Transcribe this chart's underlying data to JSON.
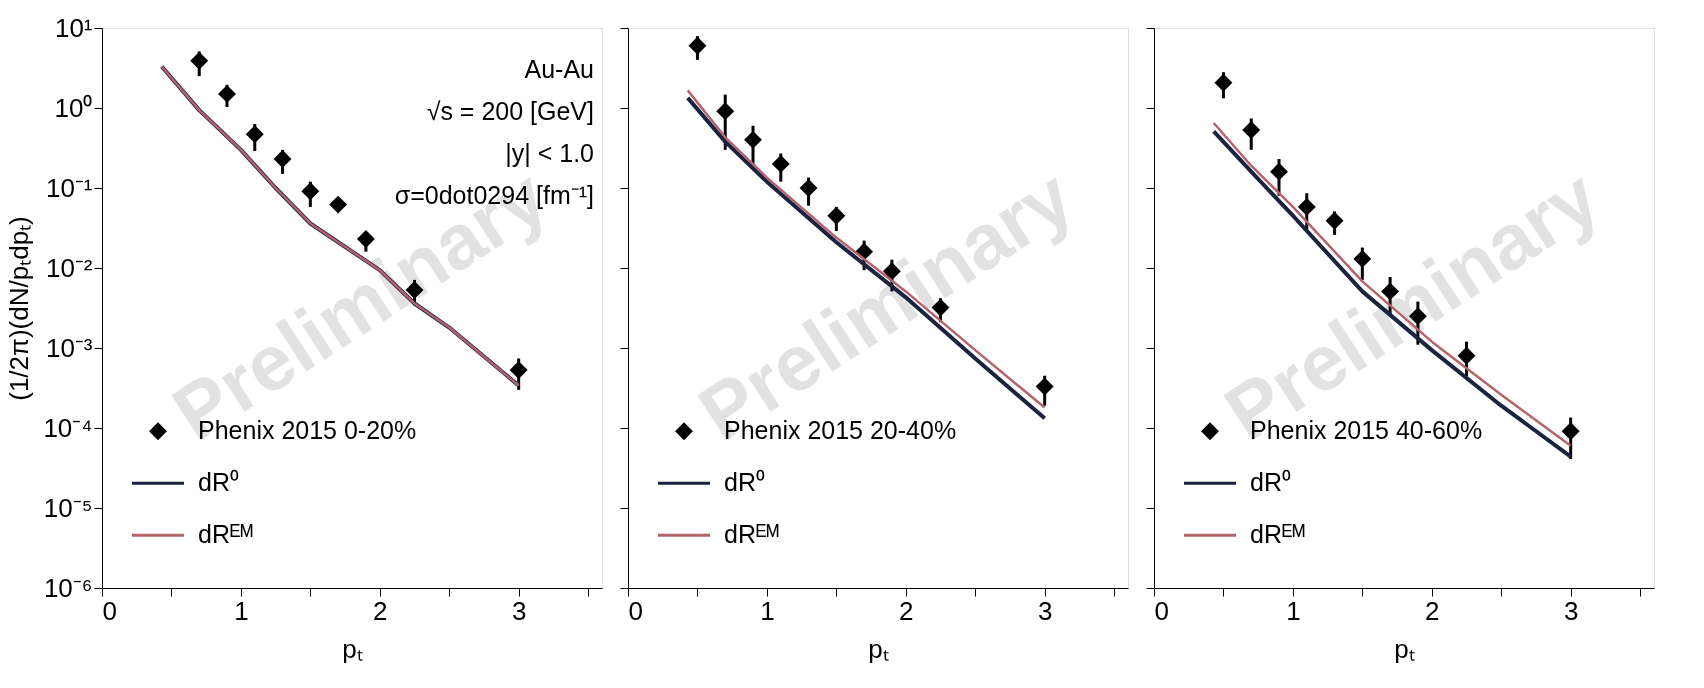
{
  "chart_data": [
    {
      "type": "scatter",
      "ylabel": "(1/2π)(dN/pₜdpₜ)",
      "xlabel": "pₜ",
      "xlim": [
        0,
        3.6
      ],
      "xticks": [
        0,
        {
          "value": 0.5,
          "label": null
        },
        1,
        {
          "value": 1.5,
          "label": null
        },
        2,
        {
          "value": 2.5,
          "label": null
        },
        3,
        {
          "value": 3.5,
          "label": null
        }
      ],
      "ylim": [
        1e-06,
        10
      ],
      "yticks": [
        {
          "value": 10,
          "label": "10¹"
        },
        {
          "value": 1,
          "label": "10⁰"
        },
        {
          "value": 0.1,
          "label": "10⁻¹"
        },
        {
          "value": 0.01,
          "label": "10⁻²"
        },
        {
          "value": 0.001,
          "label": "10⁻³"
        },
        {
          "value": 0.0001,
          "label": "10⁻⁴"
        },
        {
          "value": 1e-05,
          "label": "10⁻⁵"
        },
        {
          "value": 1e-06,
          "label": "10⁻⁶"
        }
      ],
      "log": "y",
      "legend": "bottom left",
      "annotations": [
        "Au-Au",
        "√s = 200 [GeV]",
        "|y| < 1.0",
        "σ=0dot0294 [fm⁻¹]",
        "Preliminary"
      ],
      "series": [
        {
          "name": "Phenix 2015 0-20%",
          "marker": "diamond",
          "color": "#000000",
          "x": [
            0.7,
            0.9,
            1.1,
            1.3,
            1.5,
            1.7,
            1.9,
            2.25,
            3.0
          ],
          "values": [
            3.9,
            1.5,
            0.47,
            0.23,
            0.091,
            0.062,
            0.023,
            0.0053,
            0.00053
          ],
          "errors": [
            [
              2.5,
              5.1
            ],
            [
              1.03,
              1.95
            ],
            [
              0.29,
              0.63
            ],
            [
              0.15,
              0.3
            ],
            [
              0.058,
              0.12
            ],
            null,
            [
              0.016,
              0.028
            ],
            [
              0.0034,
              0.0071
            ],
            [
              0.0003,
              0.00074
            ]
          ]
        },
        {
          "name": "dR⁰",
          "type": "line",
          "color": "#1a2340",
          "x": [
            0.43,
            0.7,
            1.0,
            1.25,
            1.5,
            2.0,
            2.25,
            2.5,
            3.0
          ],
          "values": [
            3.3,
            0.94,
            0.3,
            0.1,
            0.036,
            0.0094,
            0.0036,
            0.0018,
            0.00034
          ]
        },
        {
          "name": "dRᴱᴹ",
          "type": "line",
          "color": "#b5636b",
          "x": [
            0.43,
            0.7,
            1.0,
            1.25,
            1.5,
            2.0,
            2.25,
            2.5,
            3.0
          ],
          "values": [
            3.3,
            0.94,
            0.3,
            0.1,
            0.036,
            0.0094,
            0.0036,
            0.0018,
            0.00034
          ]
        }
      ]
    },
    {
      "type": "scatter",
      "xlabel": "pₜ",
      "xlim": [
        0,
        3.6
      ],
      "xticks": [
        0,
        {
          "value": 0.5,
          "label": null
        },
        1,
        {
          "value": 1.5,
          "label": null
        },
        2,
        {
          "value": 2.5,
          "label": null
        },
        3,
        {
          "value": 3.5,
          "label": null
        }
      ],
      "ylim": [
        1e-06,
        10
      ],
      "yticks": [
        {
          "value": 10,
          "label": null
        },
        {
          "value": 1,
          "label": null
        },
        {
          "value": 0.1,
          "label": null
        },
        {
          "value": 0.01,
          "label": null
        },
        {
          "value": 0.001,
          "label": null
        },
        {
          "value": 0.0001,
          "label": null
        },
        {
          "value": 1e-05,
          "label": null
        },
        {
          "value": 1e-06,
          "label": null
        }
      ],
      "log": "y",
      "legend": "bottom left",
      "tick_labels": "x",
      "annotations": [
        "Preliminary"
      ],
      "series": [
        {
          "name": "Phenix 2015 20-40%",
          "marker": "diamond",
          "color": "#000000",
          "x": [
            0.5,
            0.7,
            0.9,
            1.1,
            1.3,
            1.5,
            1.7,
            1.9,
            2.25,
            3.0
          ],
          "values": [
            6.0,
            0.91,
            0.4,
            0.2,
            0.1,
            0.045,
            0.016,
            0.0091,
            0.0032,
            0.00033
          ],
          "errors": [
            [
              4.0,
              7.9
            ],
            [
              0.3,
              1.47
            ],
            [
              0.19,
              0.6
            ],
            [
              0.12,
              0.27
            ],
            [
              0.06,
              0.135
            ],
            [
              0.029,
              0.058
            ],
            [
              0.0094,
              0.022
            ],
            [
              0.0051,
              0.0127
            ],
            [
              0.0021,
              0.0042
            ],
            [
              0.00019,
              0.00045
            ]
          ]
        },
        {
          "name": "dR⁰",
          "type": "line",
          "color": "#1a2340",
          "x": [
            0.43,
            0.7,
            1.0,
            1.5,
            2.0,
            2.5,
            3.0
          ],
          "values": [
            1.34,
            0.38,
            0.12,
            0.021,
            0.0043,
            0.00074,
            0.000132
          ]
        },
        {
          "name": "dRᴱᴹ",
          "type": "line",
          "color": "#b5636b",
          "x": [
            0.43,
            0.7,
            1.0,
            1.5,
            2.0,
            2.5,
            3.0
          ],
          "values": [
            1.66,
            0.43,
            0.135,
            0.024,
            0.0051,
            0.00094,
            0.00018
          ]
        }
      ]
    },
    {
      "type": "scatter",
      "xlabel": "pₜ",
      "xlim": [
        0,
        3.6
      ],
      "xticks": [
        0,
        {
          "value": 0.5,
          "label": null
        },
        1,
        {
          "value": 1.5,
          "label": null
        },
        2,
        {
          "value": 2.5,
          "label": null
        },
        3,
        {
          "value": 3.5,
          "label": null
        }
      ],
      "ylim": [
        1e-06,
        10
      ],
      "yticks": [
        {
          "value": 10,
          "label": null
        },
        {
          "value": 1,
          "label": null
        },
        {
          "value": 0.1,
          "label": null
        },
        {
          "value": 0.01,
          "label": null
        },
        {
          "value": 0.001,
          "label": null
        },
        {
          "value": 0.0001,
          "label": null
        },
        {
          "value": 1e-05,
          "label": null
        },
        {
          "value": 1e-06,
          "label": null
        }
      ],
      "log": "y",
      "legend": "bottom left",
      "tick_labels": "x",
      "annotations": [
        "Preliminary"
      ],
      "series": [
        {
          "name": "Phenix 2015 40-60%",
          "marker": "diamond",
          "color": "#000000",
          "x": [
            0.5,
            0.7,
            0.9,
            1.1,
            1.3,
            1.5,
            1.7,
            1.9,
            2.25,
            3.0
          ],
          "values": [
            2.07,
            0.53,
            0.16,
            0.058,
            0.039,
            0.013,
            0.0051,
            0.0025,
            0.0008,
            9.1e-05
          ],
          "errors": [
            [
              1.32,
              2.8
            ],
            [
              0.3,
              0.74
            ],
            [
              0.08,
              0.23
            ],
            [
              0.03,
              0.086
            ],
            [
              0.026,
              0.051
            ],
            [
              0.0071,
              0.018
            ],
            [
              0.0026,
              0.0077
            ],
            [
              0.0011,
              0.0038
            ],
            [
              0.00044,
              0.0012
            ],
            [
              4.1e-05,
              0.000135
            ]
          ]
        },
        {
          "name": "dR⁰",
          "type": "line",
          "color": "#1a2340",
          "x": [
            0.43,
            0.7,
            1.0,
            1.5,
            2.0,
            2.5,
            3.0
          ],
          "values": [
            0.51,
            0.16,
            0.045,
            0.0051,
            0.00094,
            0.00019,
            4.4e-05
          ]
        },
        {
          "name": "dRᴱᴹ",
          "type": "line",
          "color": "#b5636b",
          "x": [
            0.43,
            0.7,
            1.0,
            1.5,
            2.0,
            2.5,
            3.0
          ],
          "values": [
            0.65,
            0.19,
            0.058,
            0.0068,
            0.0012,
            0.00026,
            6e-05
          ]
        }
      ]
    }
  ]
}
